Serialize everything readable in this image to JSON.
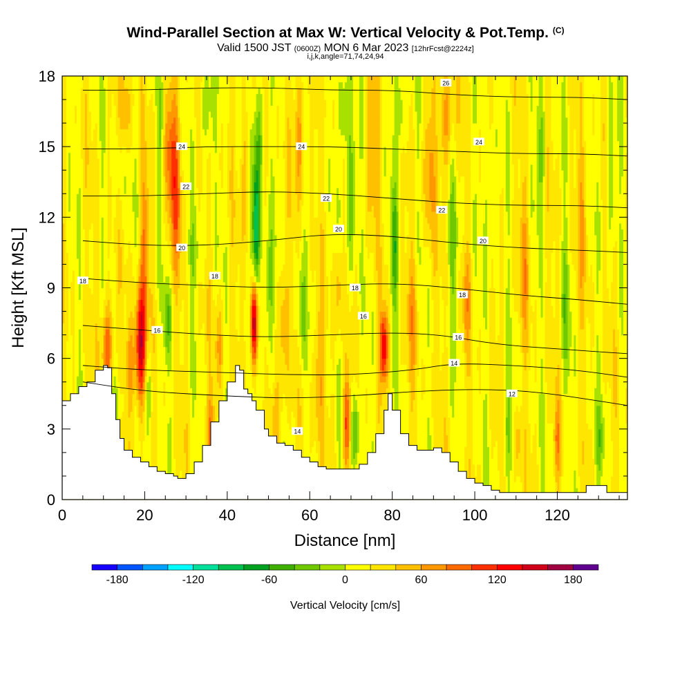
{
  "header": {
    "title": "Wind-Parallel Section at Max W: Vertical Velocity & Pot.Temp.",
    "copyright": "(C)",
    "subtitle_valid": "Valid 1500 JST",
    "subtitle_utc": "(0600Z)",
    "subtitle_date": "MON 6 Mar 2023",
    "subtitle_fcst": "[12hrFcst@2224z]",
    "params": "i,j,k,angle=71,74,24,94"
  },
  "chart_data": {
    "type": "heatmap",
    "title": "Wind-Parallel Section at Max W: Vertical Velocity & Pot.Temp.",
    "xlabel": "Distance [nm]",
    "ylabel": "Height [Kft MSL]",
    "xlim": [
      0,
      137
    ],
    "ylim": [
      0,
      18
    ],
    "x_ticks": [
      0,
      20,
      40,
      60,
      80,
      100,
      120
    ],
    "y_ticks": [
      0,
      3,
      6,
      9,
      12,
      15,
      18
    ],
    "colorbar": {
      "label": "Vertical Velocity [cm/s]",
      "ticks": [
        -180,
        -120,
        -60,
        0,
        60,
        120,
        180
      ],
      "range": [
        -200,
        200
      ],
      "step": 20,
      "colors": [
        "#1500ff",
        "#0055ff",
        "#00a0ff",
        "#00ffff",
        "#00e09a",
        "#00c050",
        "#00a020",
        "#40b000",
        "#70c800",
        "#a8e000",
        "#ffff00",
        "#ffe600",
        "#ffc000",
        "#ff9800",
        "#ff6a00",
        "#ff3000",
        "#ff0000",
        "#d0001a",
        "#a00040",
        "#600090"
      ]
    },
    "terrain": [
      [
        0,
        4.2
      ],
      [
        2,
        4.5
      ],
      [
        4,
        4.8
      ],
      [
        6,
        5.0
      ],
      [
        8,
        5.5
      ],
      [
        10,
        5.7
      ],
      [
        11,
        5.6
      ],
      [
        12,
        4.5
      ],
      [
        13,
        3.4
      ],
      [
        14,
        2.6
      ],
      [
        15,
        2.1
      ],
      [
        17,
        1.8
      ],
      [
        19,
        1.6
      ],
      [
        21,
        1.4
      ],
      [
        23,
        1.2
      ],
      [
        25,
        1.1
      ],
      [
        27,
        1.0
      ],
      [
        28,
        0.9
      ],
      [
        30,
        1.1
      ],
      [
        32,
        1.6
      ],
      [
        34,
        2.3
      ],
      [
        36,
        3.3
      ],
      [
        38,
        4.2
      ],
      [
        40,
        5.0
      ],
      [
        42,
        5.7
      ],
      [
        43,
        5.5
      ],
      [
        44,
        4.7
      ],
      [
        45,
        4.5
      ],
      [
        46,
        4.2
      ],
      [
        47,
        3.8
      ],
      [
        49,
        3.0
      ],
      [
        50,
        2.7
      ],
      [
        52,
        2.4
      ],
      [
        54,
        2.3
      ],
      [
        56,
        2.1
      ],
      [
        58,
        1.8
      ],
      [
        60,
        1.6
      ],
      [
        62,
        1.4
      ],
      [
        64,
        1.3
      ],
      [
        66,
        1.3
      ],
      [
        68,
        1.3
      ],
      [
        70,
        1.3
      ],
      [
        72,
        1.5
      ],
      [
        74,
        2.0
      ],
      [
        76,
        2.8
      ],
      [
        78,
        3.8
      ],
      [
        79,
        4.5
      ],
      [
        80,
        3.8
      ],
      [
        82,
        2.8
      ],
      [
        84,
        2.3
      ],
      [
        86,
        2.1
      ],
      [
        88,
        2.1
      ],
      [
        90,
        2.2
      ],
      [
        92,
        2.0
      ],
      [
        94,
        1.6
      ],
      [
        96,
        1.2
      ],
      [
        98,
        0.9
      ],
      [
        100,
        0.7
      ],
      [
        102,
        0.6
      ],
      [
        104,
        0.4
      ],
      [
        106,
        0.3
      ],
      [
        108,
        0.3
      ],
      [
        120,
        0.3
      ],
      [
        126,
        0.3
      ],
      [
        127,
        0.6
      ],
      [
        131,
        0.6
      ],
      [
        132,
        0.3
      ],
      [
        137,
        0.3
      ]
    ],
    "contours": [
      {
        "level": 12,
        "points": [
          [
            5,
            5.0
          ],
          [
            20,
            4.6
          ],
          [
            40,
            4.4
          ],
          [
            55,
            4.3
          ],
          [
            70,
            4.4
          ],
          [
            85,
            4.6
          ],
          [
            100,
            4.7
          ],
          [
            115,
            4.6
          ],
          [
            137,
            4.0
          ]
        ]
      },
      {
        "level": 14,
        "points": [
          [
            5,
            5.7
          ],
          [
            20,
            5.5
          ],
          [
            40,
            5.4
          ],
          [
            55,
            5.3
          ],
          [
            70,
            5.3
          ],
          [
            85,
            5.5
          ],
          [
            95,
            5.8
          ],
          [
            110,
            5.7
          ],
          [
            125,
            5.5
          ],
          [
            137,
            5.2
          ]
        ]
      },
      {
        "level": 16,
        "points": [
          [
            5,
            7.4
          ],
          [
            20,
            7.2
          ],
          [
            35,
            7.0
          ],
          [
            50,
            6.9
          ],
          [
            65,
            7.0
          ],
          [
            80,
            7.1
          ],
          [
            92,
            7.0
          ],
          [
            105,
            6.6
          ],
          [
            120,
            6.4
          ],
          [
            137,
            6.2
          ]
        ]
      },
      {
        "level": 18,
        "points": [
          [
            5,
            9.4
          ],
          [
            20,
            9.2
          ],
          [
            35,
            9.1
          ],
          [
            50,
            9.0
          ],
          [
            65,
            9.1
          ],
          [
            80,
            9.2
          ],
          [
            95,
            9.0
          ],
          [
            110,
            8.7
          ],
          [
            125,
            8.5
          ],
          [
            137,
            8.3
          ]
        ]
      },
      {
        "level": 20,
        "points": [
          [
            5,
            11.0
          ],
          [
            20,
            10.8
          ],
          [
            35,
            10.8
          ],
          [
            50,
            11.0
          ],
          [
            65,
            11.3
          ],
          [
            80,
            11.2
          ],
          [
            95,
            10.9
          ],
          [
            110,
            10.7
          ],
          [
            125,
            10.6
          ],
          [
            137,
            10.5
          ]
        ]
      },
      {
        "level": 22,
        "points": [
          [
            5,
            12.9
          ],
          [
            20,
            12.9
          ],
          [
            35,
            13.0
          ],
          [
            50,
            13.1
          ],
          [
            65,
            13.0
          ],
          [
            80,
            12.8
          ],
          [
            95,
            12.6
          ],
          [
            110,
            12.5
          ],
          [
            125,
            12.5
          ],
          [
            137,
            12.4
          ]
        ]
      },
      {
        "level": 24,
        "points": [
          [
            5,
            14.9
          ],
          [
            20,
            14.9
          ],
          [
            35,
            15.0
          ],
          [
            50,
            15.0
          ],
          [
            65,
            15.0
          ],
          [
            80,
            14.9
          ],
          [
            95,
            14.8
          ],
          [
            110,
            14.7
          ],
          [
            125,
            14.7
          ],
          [
            137,
            14.6
          ]
        ]
      },
      {
        "level": 26,
        "points": [
          [
            5,
            17.4
          ],
          [
            20,
            17.4
          ],
          [
            35,
            17.5
          ],
          [
            50,
            17.5
          ],
          [
            65,
            17.4
          ],
          [
            80,
            17.4
          ],
          [
            95,
            17.2
          ],
          [
            110,
            17.1
          ],
          [
            125,
            17.1
          ],
          [
            137,
            17.0
          ]
        ]
      }
    ],
    "contour_labels": [
      {
        "text": "12",
        "x": 109,
        "y": 4.5
      },
      {
        "text": "14",
        "x": 95,
        "y": 5.8
      },
      {
        "text": "14",
        "x": 57,
        "y": 2.9
      },
      {
        "text": "16",
        "x": 23,
        "y": 7.2
      },
      {
        "text": "16",
        "x": 73,
        "y": 7.8
      },
      {
        "text": "16",
        "x": 96,
        "y": 6.9
      },
      {
        "text": "18",
        "x": 5,
        "y": 9.3
      },
      {
        "text": "18",
        "x": 37,
        "y": 9.5
      },
      {
        "text": "18",
        "x": 71,
        "y": 9.0
      },
      {
        "text": "18",
        "x": 97,
        "y": 8.7
      },
      {
        "text": "20",
        "x": 29,
        "y": 10.7
      },
      {
        "text": "20",
        "x": 67,
        "y": 11.5
      },
      {
        "text": "20",
        "x": 102,
        "y": 11.0
      },
      {
        "text": "22",
        "x": 30,
        "y": 13.3
      },
      {
        "text": "22",
        "x": 64,
        "y": 12.8
      },
      {
        "text": "22",
        "x": 92,
        "y": 12.3
      },
      {
        "text": "24",
        "x": 29,
        "y": 15.0
      },
      {
        "text": "24",
        "x": 58,
        "y": 15.0
      },
      {
        "text": "24",
        "x": 101,
        "y": 15.2
      },
      {
        "text": "26",
        "x": 93,
        "y": 17.7
      }
    ],
    "w_features": [
      {
        "x": 11,
        "y": 6.5,
        "sx": 1.3,
        "sy": 2.0,
        "v": 85
      },
      {
        "x": 16.5,
        "y": 5.8,
        "sx": 1.0,
        "sy": 1.6,
        "v": 55
      },
      {
        "x": 19,
        "y": 6.5,
        "sx": 1.4,
        "sy": 2.6,
        "v": 140
      },
      {
        "x": 21,
        "y": 5.0,
        "sx": 1.0,
        "sy": 2.0,
        "v": -40
      },
      {
        "x": 20,
        "y": 11.0,
        "sx": 1.0,
        "sy": 3.0,
        "v": 55
      },
      {
        "x": 26,
        "y": 15.0,
        "sx": 2.0,
        "sy": 2.5,
        "v": 65
      },
      {
        "x": 27.5,
        "y": 12.5,
        "sx": 1.5,
        "sy": 3.0,
        "v": 55
      },
      {
        "x": 24,
        "y": 15.0,
        "sx": 1.0,
        "sy": 3.0,
        "v": -40
      },
      {
        "x": 14,
        "y": 15.0,
        "sx": 1.2,
        "sy": 3.0,
        "v": -30
      },
      {
        "x": 15,
        "y": 16.5,
        "sx": 1.5,
        "sy": 2.0,
        "v": 55
      },
      {
        "x": 25.5,
        "y": 7.5,
        "sx": 1.0,
        "sy": 1.5,
        "v": -50
      },
      {
        "x": 13,
        "y": 3.8,
        "sx": 1.5,
        "sy": 1.5,
        "v": -40
      },
      {
        "x": 36,
        "y": 3.0,
        "sx": 1.0,
        "sy": 1.5,
        "v": 55
      },
      {
        "x": 32,
        "y": 10.5,
        "sx": 2.0,
        "sy": 1.5,
        "v": -30
      },
      {
        "x": 35,
        "y": 16.5,
        "sx": 1.5,
        "sy": 2.0,
        "v": -40
      },
      {
        "x": 38,
        "y": 6.5,
        "sx": 1.0,
        "sy": 2.0,
        "v": 45
      },
      {
        "x": 46.5,
        "y": 7.5,
        "sx": 0.9,
        "sy": 1.8,
        "v": 150
      },
      {
        "x": 47,
        "y": 11.5,
        "sx": 0.9,
        "sy": 2.5,
        "v": -120
      },
      {
        "x": 47.5,
        "y": 15.5,
        "sx": 1.3,
        "sy": 2.5,
        "v": -60
      },
      {
        "x": 50,
        "y": 9.0,
        "sx": 1.5,
        "sy": 3.0,
        "v": -50
      },
      {
        "x": 44.5,
        "y": 14.0,
        "sx": 1.0,
        "sy": 3.0,
        "v": 45
      },
      {
        "x": 53.5,
        "y": 7.5,
        "sx": 1.2,
        "sy": 3.0,
        "v": 45
      },
      {
        "x": 57.5,
        "y": 15.5,
        "sx": 1.3,
        "sy": 2.5,
        "v": 55
      },
      {
        "x": 58,
        "y": 8.0,
        "sx": 1.0,
        "sy": 2.5,
        "v": -40
      },
      {
        "x": 52,
        "y": 3.5,
        "sx": 1.5,
        "sy": 1.5,
        "v": 40
      },
      {
        "x": 62,
        "y": 5.0,
        "sx": 1.2,
        "sy": 3.0,
        "v": 45
      },
      {
        "x": 69,
        "y": 3.2,
        "sx": 0.9,
        "sy": 2.0,
        "v": 95
      },
      {
        "x": 71,
        "y": 3.0,
        "sx": 0.9,
        "sy": 2.0,
        "v": -75
      },
      {
        "x": 70,
        "y": 13.0,
        "sx": 1.2,
        "sy": 3.0,
        "v": -60
      },
      {
        "x": 68.5,
        "y": 16.5,
        "sx": 1.2,
        "sy": 2.0,
        "v": -50
      },
      {
        "x": 67,
        "y": 9.0,
        "sx": 1.0,
        "sy": 2.0,
        "v": 45
      },
      {
        "x": 75,
        "y": 15.0,
        "sx": 1.5,
        "sy": 3.0,
        "v": 45
      },
      {
        "x": 78,
        "y": 6.5,
        "sx": 1.0,
        "sy": 1.5,
        "v": 125
      },
      {
        "x": 80.5,
        "y": 10.5,
        "sx": 1.0,
        "sy": 2.5,
        "v": -60
      },
      {
        "x": 82,
        "y": 16.5,
        "sx": 1.3,
        "sy": 2.0,
        "v": -50
      },
      {
        "x": 85,
        "y": 8.0,
        "sx": 1.3,
        "sy": 2.5,
        "v": 40
      },
      {
        "x": 89,
        "y": 14.0,
        "sx": 1.3,
        "sy": 3.0,
        "v": 45
      },
      {
        "x": 93,
        "y": 16.0,
        "sx": 1.5,
        "sy": 2.5,
        "v": 55
      },
      {
        "x": 95,
        "y": 11.0,
        "sx": 1.2,
        "sy": 3.0,
        "v": -40
      },
      {
        "x": 98,
        "y": 8.5,
        "sx": 1.0,
        "sy": 2.0,
        "v": 40
      },
      {
        "x": 104,
        "y": 13.0,
        "sx": 1.3,
        "sy": 3.0,
        "v": -40
      },
      {
        "x": 108,
        "y": 3.0,
        "sx": 1.2,
        "sy": 2.0,
        "v": -40
      },
      {
        "x": 110.5,
        "y": 2.5,
        "sx": 1.0,
        "sy": 1.5,
        "v": 40
      },
      {
        "x": 112,
        "y": 10.0,
        "sx": 1.3,
        "sy": 3.0,
        "v": 40
      },
      {
        "x": 116,
        "y": 15.0,
        "sx": 1.2,
        "sy": 3.0,
        "v": -40
      },
      {
        "x": 120,
        "y": 2.5,
        "sx": 0.8,
        "sy": 1.5,
        "v": 55
      },
      {
        "x": 122,
        "y": 8.0,
        "sx": 1.2,
        "sy": 3.0,
        "v": -35
      },
      {
        "x": 126,
        "y": 12.0,
        "sx": 1.3,
        "sy": 3.0,
        "v": 35
      },
      {
        "x": 130,
        "y": 2.5,
        "sx": 1.5,
        "sy": 1.5,
        "v": -35
      },
      {
        "x": 133,
        "y": 14.0,
        "sx": 1.3,
        "sy": 3.0,
        "v": -40
      }
    ]
  }
}
